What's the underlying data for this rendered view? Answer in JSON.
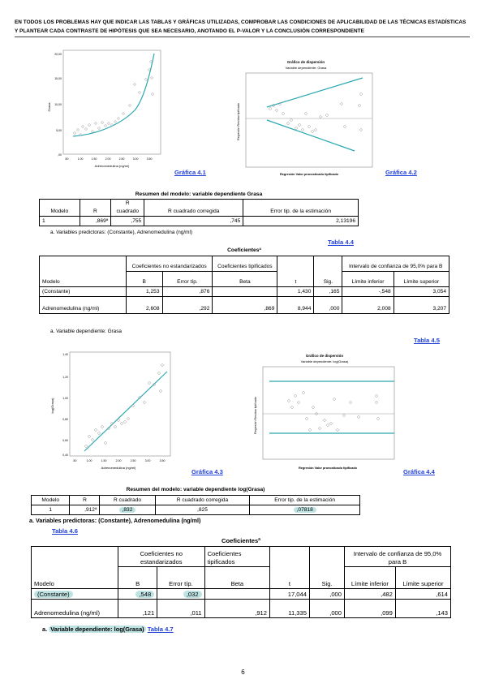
{
  "header": "EN TODOS LOS PROBLEMAS HAY QUE INDICAR LAS TABLAS Y GRÁFICAS UTILIZADAS, COMPROBAR LAS CONDICIONES DE APLICABILIDAD DE LAS TÉCNICAS ESTADÍSTICAS Y PLANTEAR CADA CONTRASTE DE HIPÓTESIS QUE SEA NECESARIO, ANOTANDO EL P-VALOR Y LA CONCLUSIÓN CORRESPONDIENTE",
  "graf41": {
    "link": "Gráfica 4.1",
    "ylabel": "Grasa",
    "xlabel": "Adrenomedulina (ng/ml)",
    "yticks": [
      "20,00",
      "15,00",
      "10,00",
      "5,00",
      ",00"
    ],
    "xticks": [
      ".50",
      "1.00",
      "1.50",
      "2.00",
      "2.50",
      "3.00",
      "3.50"
    ]
  },
  "graf42": {
    "link": "Gráfica 4.2",
    "title": "Gráfico de dispersión",
    "subtitle": "Variable dependiente: Grasa",
    "xlabel": "Regresión Valor pronosticado tipificado",
    "ylabel": "Regresión Residuo tipificado"
  },
  "t44": {
    "title": "Resumen del modelo: variable dependiente Grasa",
    "headers": [
      "Modelo",
      "R",
      "R cuadrado",
      "R cuadrado corregida",
      "Error tip. de la estimación"
    ],
    "row": [
      "1",
      ",869ª",
      ",755",
      ",745",
      "2,13196"
    ],
    "note": "a. Variables predictoras: (Constante), Adrenomedulina (ng/ml)",
    "link": "Tabla 4.4"
  },
  "t45": {
    "title": "Coeficientesª",
    "h_coef": "Coeficientes no estandarizados",
    "h_tip": "Coeficientes tipificados",
    "h_ic": "Intervalo de confianza de 95,0% para B",
    "h_modelo": "Modelo",
    "h_b": "B",
    "h_err": "Error típ.",
    "h_beta": "Beta",
    "h_t": "t",
    "h_sig": "Sig.",
    "h_inf": "Límite inferior",
    "h_sup": "Límite superior",
    "rows": [
      [
        "(Constante)",
        "1,253",
        ",876",
        "",
        "1,430",
        ",165",
        "-,548",
        "3,054"
      ],
      [
        "Adrenomedulina (ng/ml)",
        "2,608",
        ",292",
        ",869",
        "8,944",
        ",000",
        "2,008",
        "3,207"
      ]
    ],
    "note": "a. Variable dependiente: Grasa",
    "link": "Tabla 4.5"
  },
  "graf43": {
    "link": "Gráfica 4.3",
    "ylabel": "log(Grasa)",
    "xlabel": "Adrenomedulina (ng/ml)",
    "yticks": [
      "1,40",
      "1,20",
      "1,00",
      "0,80",
      "0,60",
      "0,40"
    ],
    "xticks": [
      ".50",
      "1.00",
      "1.50",
      "2.00",
      "2.50",
      "3.00",
      "3.50"
    ]
  },
  "graf44": {
    "link": "Gráfica 4.4",
    "title": "Gráfico de dispersión",
    "subtitle": "Variable dependiente: log(Grasa)",
    "xlabel": "Regresión Valor pronosticado tipificado",
    "ylabel": "Regresión Residuo tipificado"
  },
  "t46": {
    "title": "Resumen del modelo: variable dependiente log(Grasa)",
    "headers": [
      "Modelo",
      "R",
      "R cuadrado",
      "R cuadrado corregida",
      "Error tip. de la estimación"
    ],
    "row": [
      "1",
      ",912ª",
      ",832",
      ",825",
      ",07818"
    ],
    "note": "a.   Variables predictoras: (Constante), Adrenomedulina (ng/ml)",
    "link": "Tabla 4.6"
  },
  "t47": {
    "title": "Coeficientesª",
    "h_coef": "Coeficientes no estandarizados",
    "h_tip": "Coeficientes tipificados",
    "h_ic": "Intervalo de confianza de 95,0% para B",
    "h_modelo": "Modelo",
    "h_b": "B",
    "h_err": "Error típ.",
    "h_beta": "Beta",
    "h_t": "t",
    "h_sig": "Sig.",
    "h_inf": "Límite inferior",
    "h_sup": "Límite superior",
    "rows": [
      [
        "(Constante)",
        ",548",
        ",032",
        "",
        "17,044",
        ",000",
        ",482",
        ",614"
      ],
      [
        "Adrenomedulina (ng/ml)",
        ",121",
        ",011",
        ",912",
        "11,335",
        ",000",
        ",099",
        ",143"
      ]
    ],
    "note_prefix": "a.",
    "note_hl": "Variable dependiente: log(Grasa)",
    "link": "Tabla 4.7"
  },
  "page_number": "6"
}
